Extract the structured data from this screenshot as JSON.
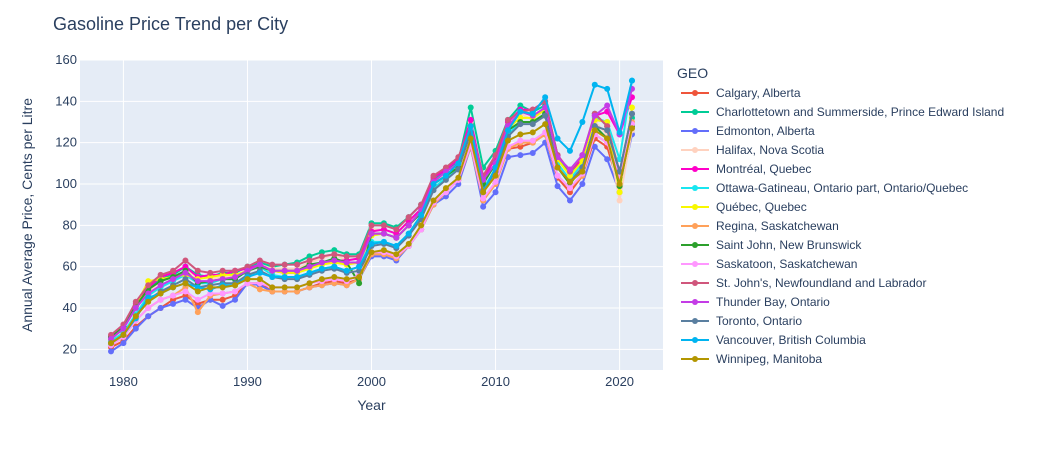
{
  "chart_data": {
    "type": "line",
    "title": "Gasoline Price Trend per City",
    "xlabel": "Year",
    "ylabel": "Annual Average Price, Cents per Litre",
    "xlim": [
      1976.5,
      2023.5
    ],
    "ylim": [
      10,
      160
    ],
    "x_ticks": [
      1980,
      1990,
      2000,
      2010,
      2020
    ],
    "y_ticks": [
      20,
      40,
      60,
      80,
      100,
      120,
      140,
      160
    ],
    "grid": true,
    "legend_title": "GEO",
    "legend_position": "right",
    "years": [
      1979,
      1980,
      1981,
      1982,
      1983,
      1984,
      1985,
      1986,
      1987,
      1988,
      1989,
      1990,
      1991,
      1992,
      1993,
      1994,
      1995,
      1996,
      1997,
      1998,
      1999,
      2000,
      2001,
      2002,
      2003,
      2004,
      2005,
      2006,
      2007,
      2008,
      2009,
      2010,
      2011,
      2012,
      2013,
      2014,
      2015,
      2016,
      2017,
      2018,
      2019,
      2020,
      2021
    ],
    "series": [
      {
        "name": "Calgary, Alberta",
        "color": "#EF553B",
        "values": [
          21,
          24,
          31,
          36,
          40,
          44,
          46,
          42,
          44,
          44,
          46,
          52,
          52,
          48,
          48,
          48,
          50,
          52,
          53,
          52,
          54,
          66,
          66,
          64,
          70,
          78,
          90,
          96,
          102,
          118,
          92,
          100,
          117,
          118,
          120,
          124,
          103,
          96,
          104,
          122,
          118,
          98,
          128
        ]
      },
      {
        "name": "Charlottetown and Summerside, Prince Edward Island",
        "color": "#00CC96",
        "values": [
          26,
          31,
          41,
          49,
          54,
          56,
          60,
          56,
          55,
          57,
          57,
          60,
          62,
          60,
          61,
          62,
          65,
          67,
          68,
          66,
          66,
          81,
          81,
          79,
          84,
          90,
          102,
          106,
          111,
          137,
          108,
          116,
          131,
          138,
          135,
          138,
          114,
          104,
          112,
          134,
          128,
          105,
          132
        ]
      },
      {
        "name": "Edmonton, Alberta",
        "color": "#636EFA",
        "values": [
          19,
          23,
          30,
          36,
          40,
          42,
          44,
          40,
          44,
          41,
          44,
          52,
          51,
          48,
          48,
          48,
          50,
          51,
          52,
          51,
          54,
          65,
          65,
          63,
          70,
          78,
          90,
          94,
          100,
          118,
          89,
          96,
          113,
          114,
          115,
          120,
          99,
          92,
          100,
          118,
          112,
          96,
          124
        ]
      },
      {
        "name": "Halifax, Nova Scotia",
        "color": "#FFD2BF",
        "values": [
          25,
          30,
          40,
          48,
          53,
          55,
          58,
          55,
          54,
          55,
          55,
          58,
          61,
          59,
          59,
          59,
          62,
          64,
          66,
          63,
          64,
          78,
          78,
          76,
          82,
          88,
          101,
          104,
          110,
          130,
          104,
          112,
          128,
          134,
          131,
          136,
          110,
          101,
          109,
          130,
          124,
          92,
          126
        ]
      },
      {
        "name": "Montréal, Quebec",
        "color": "#FF00C8",
        "values": [
          26,
          31,
          42,
          50,
          55,
          57,
          60,
          55,
          56,
          56,
          58,
          59,
          61,
          58,
          57,
          57,
          60,
          62,
          63,
          63,
          64,
          77,
          78,
          76,
          82,
          88,
          103,
          107,
          112,
          131,
          102,
          113,
          130,
          136,
          136,
          140,
          114,
          106,
          112,
          133,
          135,
          124,
          142
        ]
      },
      {
        "name": "Ottawa-Gatineau, Ontario part, Ontario/Quebec",
        "color": "#19E6F0",
        "values": [
          24,
          28,
          37,
          46,
          50,
          53,
          56,
          52,
          52,
          54,
          54,
          58,
          60,
          56,
          55,
          55,
          57,
          59,
          60,
          58,
          60,
          72,
          72,
          70,
          76,
          84,
          98,
          103,
          108,
          126,
          98,
          107,
          124,
          130,
          130,
          134,
          110,
          102,
          110,
          132,
          130,
          112,
          150
        ]
      },
      {
        "name": "Québec, Quebec",
        "color": "#F8F800",
        "values": [
          25,
          30,
          41,
          53,
          54,
          55,
          56,
          54,
          55,
          56,
          56,
          58,
          60,
          58,
          57,
          57,
          59,
          61,
          62,
          61,
          62,
          75,
          76,
          74,
          80,
          87,
          100,
          104,
          110,
          128,
          101,
          110,
          127,
          132,
          132,
          136,
          112,
          104,
          111,
          131,
          130,
          96,
          137
        ]
      },
      {
        "name": "Regina, Saskatchewan",
        "color": "#FFA15A",
        "values": [
          22,
          26,
          34,
          40,
          44,
          46,
          50,
          38,
          46,
          47,
          48,
          52,
          49,
          48,
          48,
          48,
          50,
          51,
          52,
          51,
          54,
          66,
          66,
          64,
          70,
          78,
          90,
          96,
          102,
          118,
          92,
          100,
          117,
          120,
          120,
          124,
          104,
          98,
          104,
          124,
          120,
          104,
          130
        ]
      },
      {
        "name": "Saint John, New Brunswick",
        "color": "#2CA02C",
        "values": [
          26,
          31,
          41,
          49,
          53,
          55,
          58,
          52,
          53,
          54,
          54,
          58,
          60,
          58,
          58,
          58,
          61,
          62,
          64,
          62,
          52,
          76,
          76,
          74,
          80,
          86,
          100,
          104,
          108,
          128,
          100,
          110,
          126,
          130,
          130,
          134,
          108,
          100,
          108,
          128,
          122,
          99,
          128
        ]
      },
      {
        "name": "Saskatoon, Saskatchewan",
        "color": "#FF97FF",
        "values": [
          22,
          26,
          34,
          40,
          44,
          46,
          48,
          44,
          47,
          47,
          48,
          52,
          52,
          50,
          50,
          50,
          52,
          53,
          54,
          53,
          56,
          67,
          67,
          65,
          70,
          78,
          91,
          96,
          102,
          119,
          93,
          101,
          118,
          121,
          121,
          125,
          104,
          98,
          105,
          124,
          120,
          104,
          129
        ]
      },
      {
        "name": "St. John's, Newfoundland and Labrador",
        "color": "#D0567C",
        "values": [
          27,
          32,
          43,
          51,
          56,
          58,
          63,
          58,
          57,
          58,
          58,
          60,
          63,
          61,
          61,
          61,
          63,
          65,
          66,
          65,
          65,
          80,
          80,
          78,
          84,
          90,
          104,
          108,
          113,
          128,
          104,
          114,
          131,
          135,
          136,
          140,
          114,
          106,
          114,
          134,
          128,
          106,
          134
        ]
      },
      {
        "name": "Thunder Bay, Ontario",
        "color": "#C43CE6",
        "values": [
          25,
          30,
          40,
          47,
          51,
          54,
          57,
          53,
          53,
          54,
          55,
          58,
          61,
          58,
          58,
          58,
          60,
          62,
          63,
          62,
          62,
          76,
          76,
          74,
          80,
          87,
          101,
          106,
          110,
          128,
          102,
          110,
          128,
          135,
          133,
          137,
          113,
          107,
          114,
          133,
          138,
          124,
          146
        ]
      },
      {
        "name": "Toronto, Ontario",
        "color": "#5A7FA0",
        "values": [
          23,
          27,
          36,
          44,
          48,
          51,
          54,
          50,
          51,
          52,
          52,
          56,
          58,
          55,
          54,
          54,
          56,
          58,
          59,
          57,
          58,
          70,
          71,
          69,
          75,
          83,
          97,
          102,
          107,
          125,
          97,
          106,
          123,
          129,
          129,
          133,
          108,
          101,
          108,
          128,
          126,
          106,
          134
        ]
      },
      {
        "name": "Vancouver, British Columbia",
        "color": "#00B4F0",
        "values": [
          23,
          27,
          35,
          45,
          47,
          50,
          52,
          50,
          49,
          51,
          51,
          55,
          57,
          55,
          55,
          55,
          57,
          59,
          60,
          58,
          60,
          71,
          72,
          70,
          76,
          85,
          100,
          104,
          110,
          128,
          96,
          108,
          126,
          135,
          134,
          142,
          122,
          116,
          130,
          148,
          146,
          125,
          150
        ]
      },
      {
        "name": "Winnipeg, Manitoba",
        "color": "#B39600",
        "values": [
          23,
          27,
          36,
          43,
          47,
          50,
          52,
          48,
          50,
          50,
          51,
          54,
          54,
          50,
          50,
          50,
          52,
          54,
          55,
          54,
          55,
          67,
          68,
          66,
          71,
          80,
          92,
          98,
          103,
          122,
          96,
          104,
          121,
          124,
          125,
          129,
          108,
          101,
          106,
          126,
          122,
          100,
          127
        ]
      }
    ]
  }
}
